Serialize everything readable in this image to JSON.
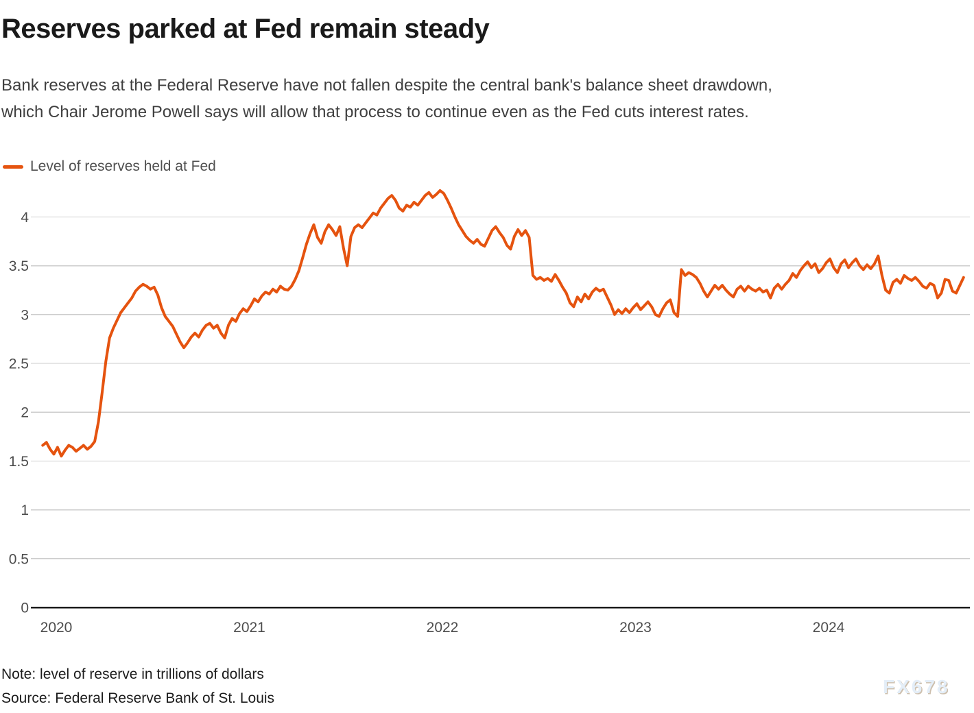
{
  "colors": {
    "line": "#e5530f",
    "gridline": "#cccccc",
    "axis_baseline": "#1a1a1a",
    "axis_label": "#4d4d4d",
    "title": "#1a1a1a",
    "subtitle": "#3f3f3f"
  },
  "watermark": {
    "text": "FX678"
  },
  "chart_data": {
    "type": "line",
    "title": "Reserves parked at Fed remain steady",
    "subtitle": "Bank reserves at the Federal Reserve have not fallen despite the central bank's balance sheet drawdown,\nwhich Chair Jerome Powell says will allow that process to continue even as the Fed cuts interest rates.",
    "note": "Note: level of reserve in trillions of dollars",
    "source": "Source: Federal Reserve Bank of St. Louis",
    "unit": "trillions of US dollars",
    "grid": "horizontal",
    "legend_position": "top-left",
    "x_axis": {
      "ticks": [
        2020,
        2021,
        2022,
        2023,
        2024
      ],
      "range": [
        2019.93,
        2024.75
      ]
    },
    "y_axis": {
      "ticks": [
        0,
        0.5,
        1,
        1.5,
        2,
        2.5,
        3,
        3.5,
        4
      ],
      "range": [
        0,
        4.35
      ]
    },
    "series": [
      {
        "name": "Level of reserves held at Fed",
        "color": "#e5530f",
        "x_start": 2019.93,
        "x_step": 0.019231,
        "values": [
          1.66,
          1.69,
          1.62,
          1.57,
          1.64,
          1.55,
          1.61,
          1.66,
          1.64,
          1.6,
          1.63,
          1.66,
          1.62,
          1.65,
          1.7,
          1.9,
          2.2,
          2.52,
          2.76,
          2.86,
          2.94,
          3.02,
          3.07,
          3.12,
          3.17,
          3.24,
          3.28,
          3.31,
          3.29,
          3.26,
          3.28,
          3.2,
          3.07,
          2.98,
          2.93,
          2.88,
          2.8,
          2.72,
          2.66,
          2.71,
          2.77,
          2.81,
          2.77,
          2.84,
          2.89,
          2.91,
          2.86,
          2.89,
          2.81,
          2.76,
          2.89,
          2.96,
          2.93,
          3.01,
          3.06,
          3.03,
          3.09,
          3.16,
          3.13,
          3.19,
          3.23,
          3.21,
          3.26,
          3.23,
          3.29,
          3.26,
          3.25,
          3.29,
          3.36,
          3.45,
          3.58,
          3.72,
          3.83,
          3.92,
          3.79,
          3.73,
          3.85,
          3.92,
          3.87,
          3.81,
          3.9,
          3.68,
          3.5,
          3.8,
          3.89,
          3.92,
          3.89,
          3.94,
          3.99,
          4.04,
          4.02,
          4.09,
          4.14,
          4.19,
          4.22,
          4.17,
          4.09,
          4.06,
          4.12,
          4.1,
          4.15,
          4.12,
          4.17,
          4.22,
          4.25,
          4.2,
          4.23,
          4.27,
          4.24,
          4.17,
          4.09,
          4.0,
          3.92,
          3.86,
          3.8,
          3.76,
          3.73,
          3.77,
          3.72,
          3.7,
          3.78,
          3.86,
          3.9,
          3.84,
          3.79,
          3.71,
          3.67,
          3.8,
          3.87,
          3.81,
          3.86,
          3.79,
          3.4,
          3.36,
          3.38,
          3.35,
          3.37,
          3.34,
          3.41,
          3.35,
          3.28,
          3.22,
          3.12,
          3.08,
          3.18,
          3.13,
          3.21,
          3.16,
          3.23,
          3.27,
          3.24,
          3.26,
          3.18,
          3.1,
          3.0,
          3.05,
          3.01,
          3.06,
          3.02,
          3.07,
          3.11,
          3.05,
          3.09,
          3.13,
          3.08,
          3.0,
          2.98,
          3.06,
          3.12,
          3.15,
          3.02,
          2.98,
          3.46,
          3.4,
          3.43,
          3.41,
          3.38,
          3.32,
          3.24,
          3.18,
          3.24,
          3.3,
          3.26,
          3.3,
          3.25,
          3.21,
          3.18,
          3.26,
          3.29,
          3.24,
          3.29,
          3.26,
          3.24,
          3.27,
          3.23,
          3.25,
          3.17,
          3.27,
          3.31,
          3.26,
          3.31,
          3.35,
          3.42,
          3.38,
          3.45,
          3.5,
          3.54,
          3.48,
          3.52,
          3.43,
          3.47,
          3.53,
          3.57,
          3.48,
          3.43,
          3.52,
          3.56,
          3.48,
          3.53,
          3.57,
          3.5,
          3.46,
          3.51,
          3.47,
          3.52,
          3.6,
          3.4,
          3.25,
          3.22,
          3.33,
          3.36,
          3.32,
          3.4,
          3.37,
          3.35,
          3.38,
          3.34,
          3.29,
          3.27,
          3.32,
          3.3,
          3.17,
          3.22,
          3.36,
          3.35,
          3.24,
          3.22,
          3.3,
          3.38
        ]
      }
    ]
  }
}
